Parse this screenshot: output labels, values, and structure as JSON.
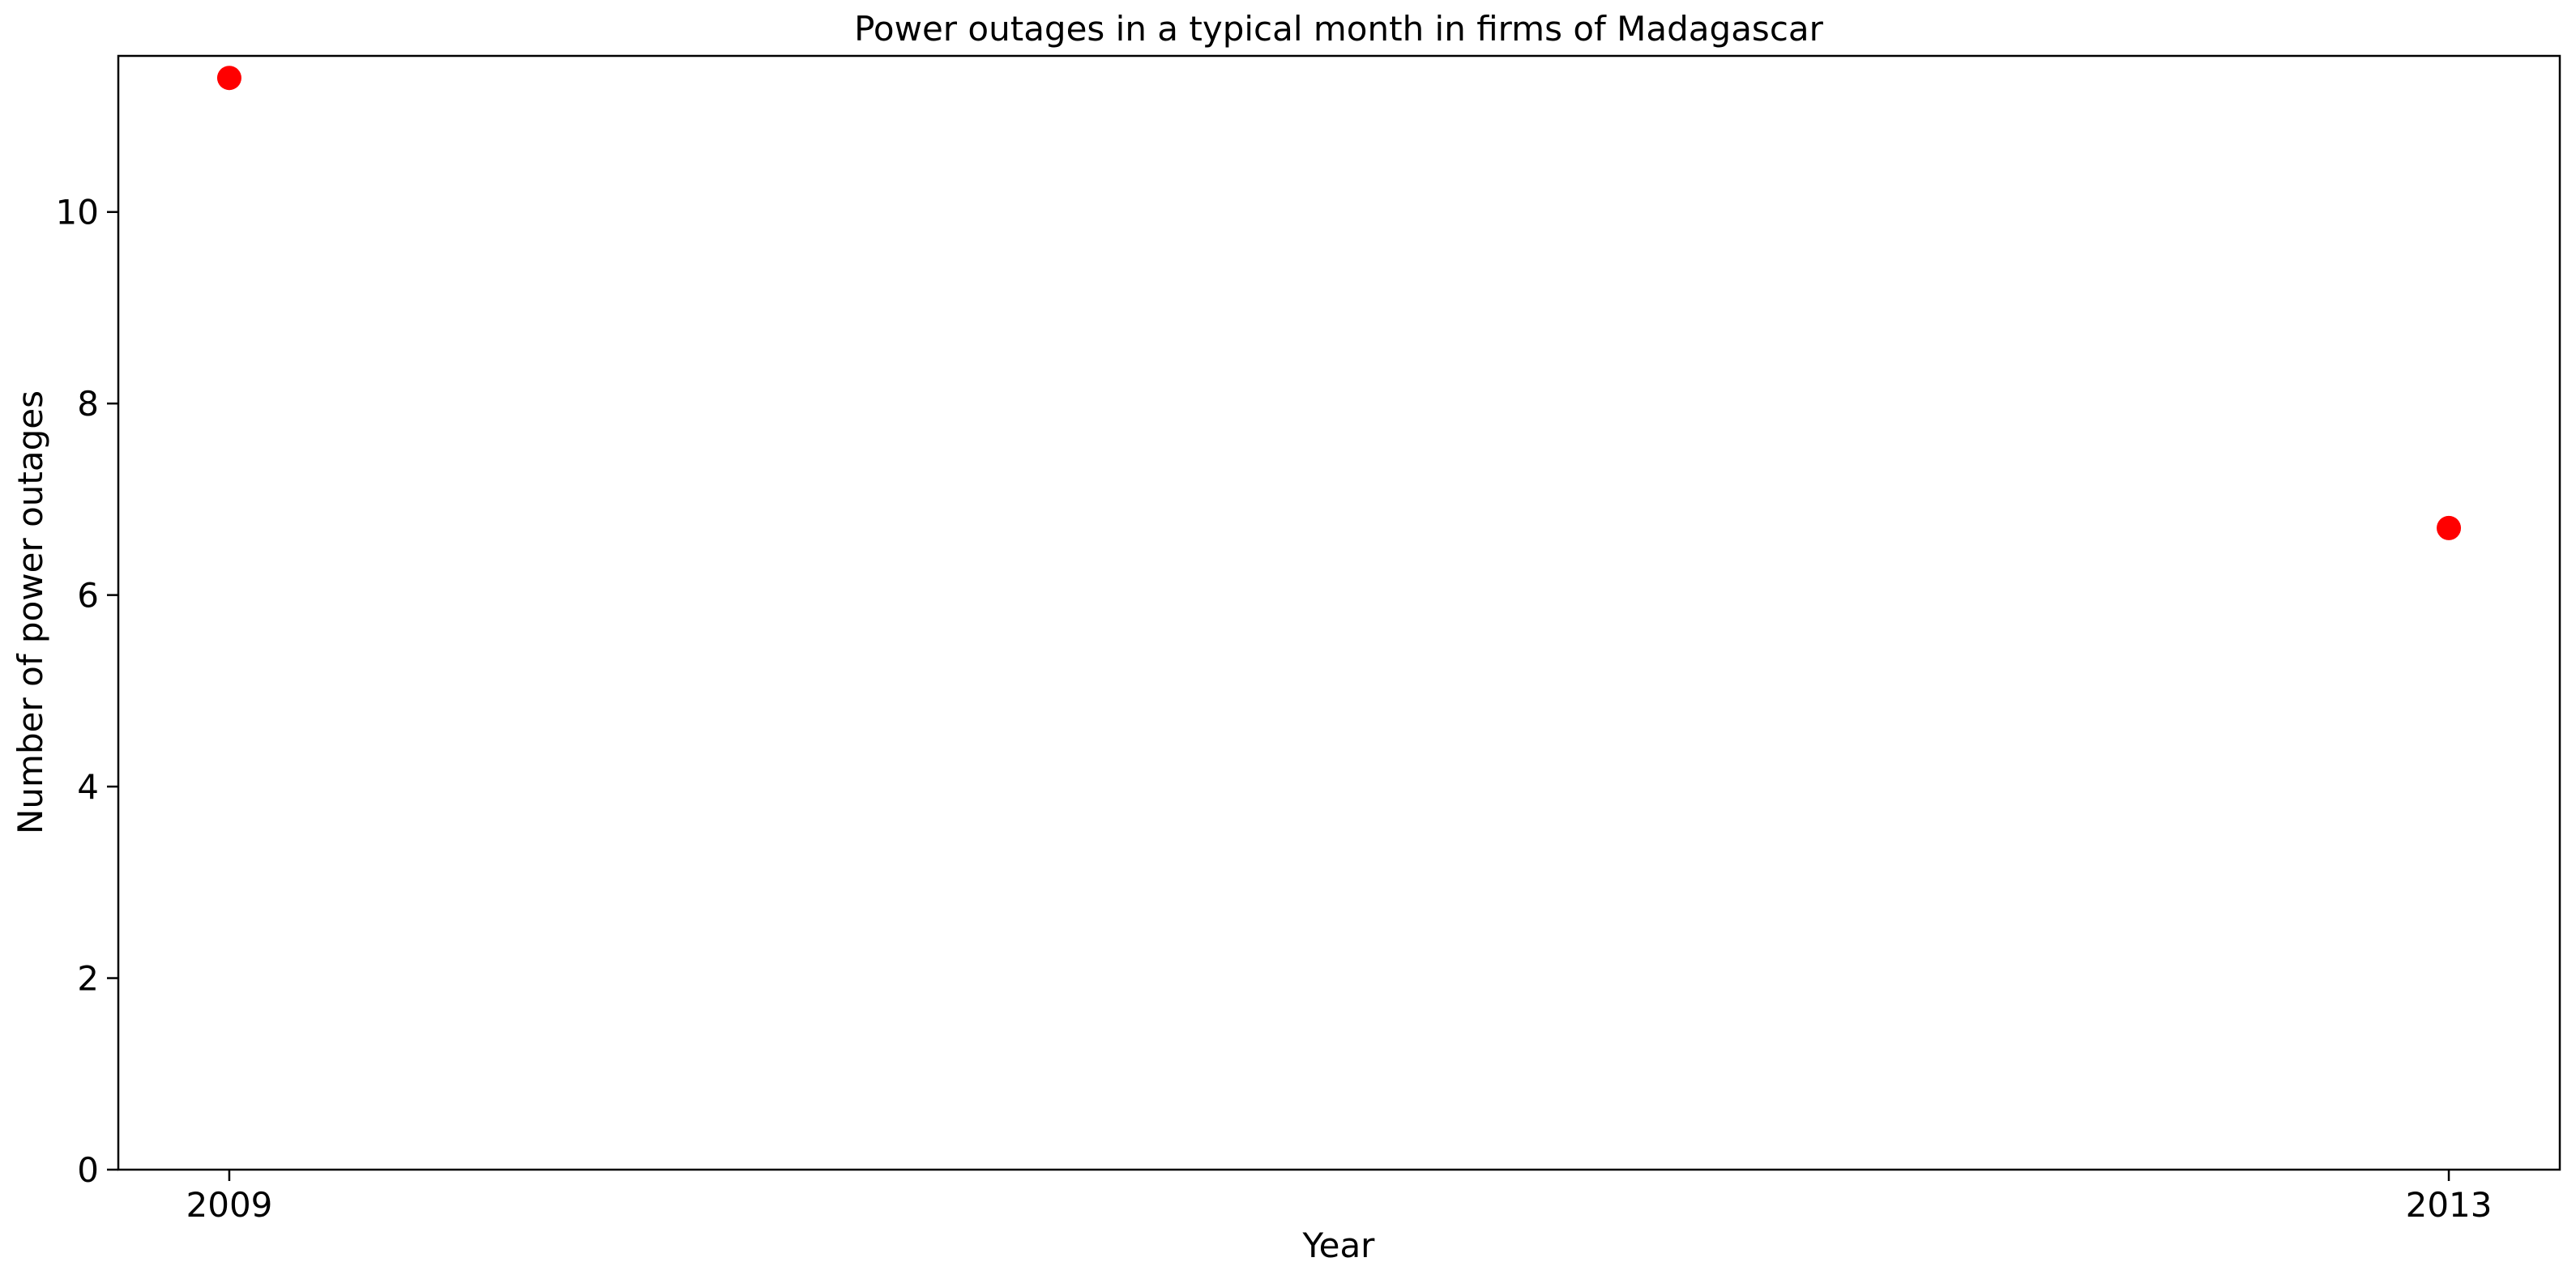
{
  "chart_data": {
    "type": "scatter",
    "title": "Power outages in a typical month in firms of Madagascar",
    "xlabel": "Year",
    "ylabel": "Number of power outages",
    "x": [
      2009,
      2013
    ],
    "x_tick_labels": [
      "2009",
      "2013"
    ],
    "series": [
      {
        "values": [
          11.4,
          6.7
        ],
        "color": "#ff0000"
      }
    ],
    "xlim": [
      2008.8,
      2013.2
    ],
    "ylim": [
      0,
      11.63
    ],
    "y_ticks": [
      0,
      2,
      4,
      6,
      8,
      10
    ],
    "grid": false,
    "legend": "none"
  }
}
